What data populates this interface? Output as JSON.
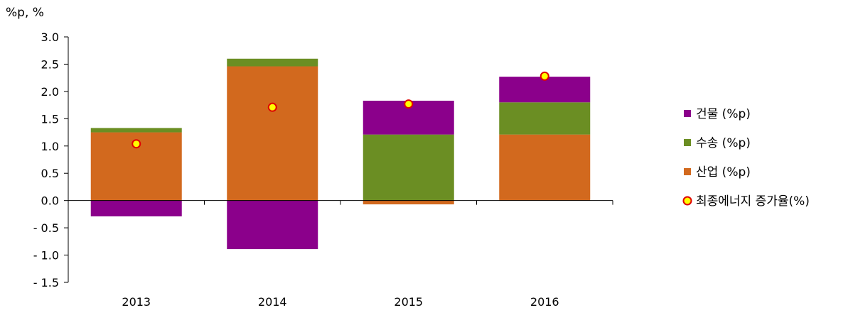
{
  "chart_data": {
    "type": "bar",
    "stacked": true,
    "ylabel": "%p, %",
    "ylim": [
      -1.5,
      3.0
    ],
    "yticks": [
      3.0,
      2.5,
      2.0,
      1.5,
      1.0,
      0.5,
      0.0,
      -0.5,
      -1.0,
      -1.5
    ],
    "ytick_labels": [
      "3.0",
      "2.5",
      "2.0",
      "1.5",
      "1.0",
      "0.5",
      "0.0",
      "- 0.5",
      "- 1.0",
      "- 1.5"
    ],
    "categories": [
      "2013",
      "2014",
      "2015",
      "2016"
    ],
    "grid": false,
    "legend_position": "right",
    "series": [
      {
        "name": "산업 (%p)",
        "type": "bar",
        "color": "#D2691E",
        "values": [
          1.25,
          2.46,
          -0.07,
          1.21
        ]
      },
      {
        "name": "수송 (%p)",
        "type": "bar",
        "color": "#6B8E23",
        "values": [
          0.08,
          0.14,
          1.21,
          0.59
        ]
      },
      {
        "name": "건물 (%p)",
        "type": "bar",
        "color": "#8B008B",
        "values": [
          -0.29,
          -0.89,
          0.62,
          0.47
        ]
      },
      {
        "name": "최종에너지 증가율(%)",
        "type": "scatter",
        "color": "#FFFF00",
        "edge_color": "#E00000",
        "values": [
          1.04,
          1.71,
          1.77,
          2.28
        ]
      }
    ],
    "legend_order": [
      "건물 (%p)",
      "수송 (%p)",
      "산업 (%p)",
      "최종에너지 증가율(%)"
    ]
  }
}
